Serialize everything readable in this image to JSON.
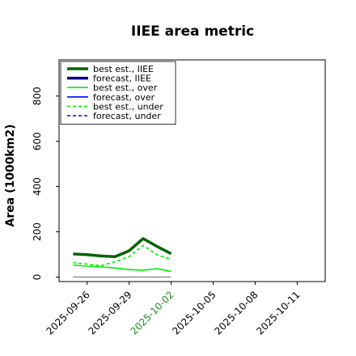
{
  "chart_data": {
    "type": "line",
    "title": "IIEE area metric",
    "xlabel": "",
    "ylabel": "Area (1000km2)",
    "ylim": [
      -20,
      960
    ],
    "xlim": [
      "2025-09-24",
      "2025-10-13"
    ],
    "x_ticks": [
      "2025-09-26",
      "2025-09-29",
      "2025-10-02",
      "2025-10-05",
      "2025-10-08",
      "2025-10-11"
    ],
    "highlighted_tick": "2025-10-02",
    "y_ticks": [
      0,
      200,
      400,
      600,
      800
    ],
    "grid": false,
    "legend_position": "top-left",
    "baseline": {
      "x": [
        "2025-09-25",
        "2025-10-02"
      ],
      "y": 0,
      "color": "#808080"
    },
    "series": [
      {
        "name": "best est., IIEE",
        "color": "#006400",
        "style": "solid",
        "weight": "thick",
        "x": [
          "2025-09-25",
          "2025-09-26",
          "2025-09-27",
          "2025-09-28",
          "2025-09-29",
          "2025-09-30",
          "2025-10-01",
          "2025-10-02"
        ],
        "values": [
          102,
          99,
          93,
          90,
          116,
          170,
          135,
          103
        ]
      },
      {
        "name": "forecast, IIEE",
        "color": "#00008b",
        "style": "solid",
        "weight": "thick",
        "x": [],
        "values": []
      },
      {
        "name": "best est., over",
        "color": "#00ee00",
        "style": "solid",
        "weight": "thin",
        "x": [
          "2025-09-25",
          "2025-09-26",
          "2025-09-27",
          "2025-09-28",
          "2025-09-29",
          "2025-09-30",
          "2025-10-01",
          "2025-10-02"
        ],
        "values": [
          53,
          48,
          45,
          40,
          33,
          30,
          37,
          25
        ]
      },
      {
        "name": "forecast, over",
        "color": "#0000ff",
        "style": "solid",
        "weight": "thin",
        "x": [],
        "values": []
      },
      {
        "name": "best est., under",
        "color": "#00ee00",
        "style": "dashed",
        "weight": "thin",
        "x": [
          "2025-09-25",
          "2025-09-26",
          "2025-09-27",
          "2025-09-28",
          "2025-09-29",
          "2025-09-30",
          "2025-10-01",
          "2025-10-02"
        ],
        "values": [
          64,
          57,
          50,
          68,
          90,
          140,
          98,
          78
        ]
      },
      {
        "name": "forecast, under",
        "color": "#0000ff",
        "style": "dashed",
        "weight": "thin",
        "x": [],
        "values": []
      }
    ]
  }
}
